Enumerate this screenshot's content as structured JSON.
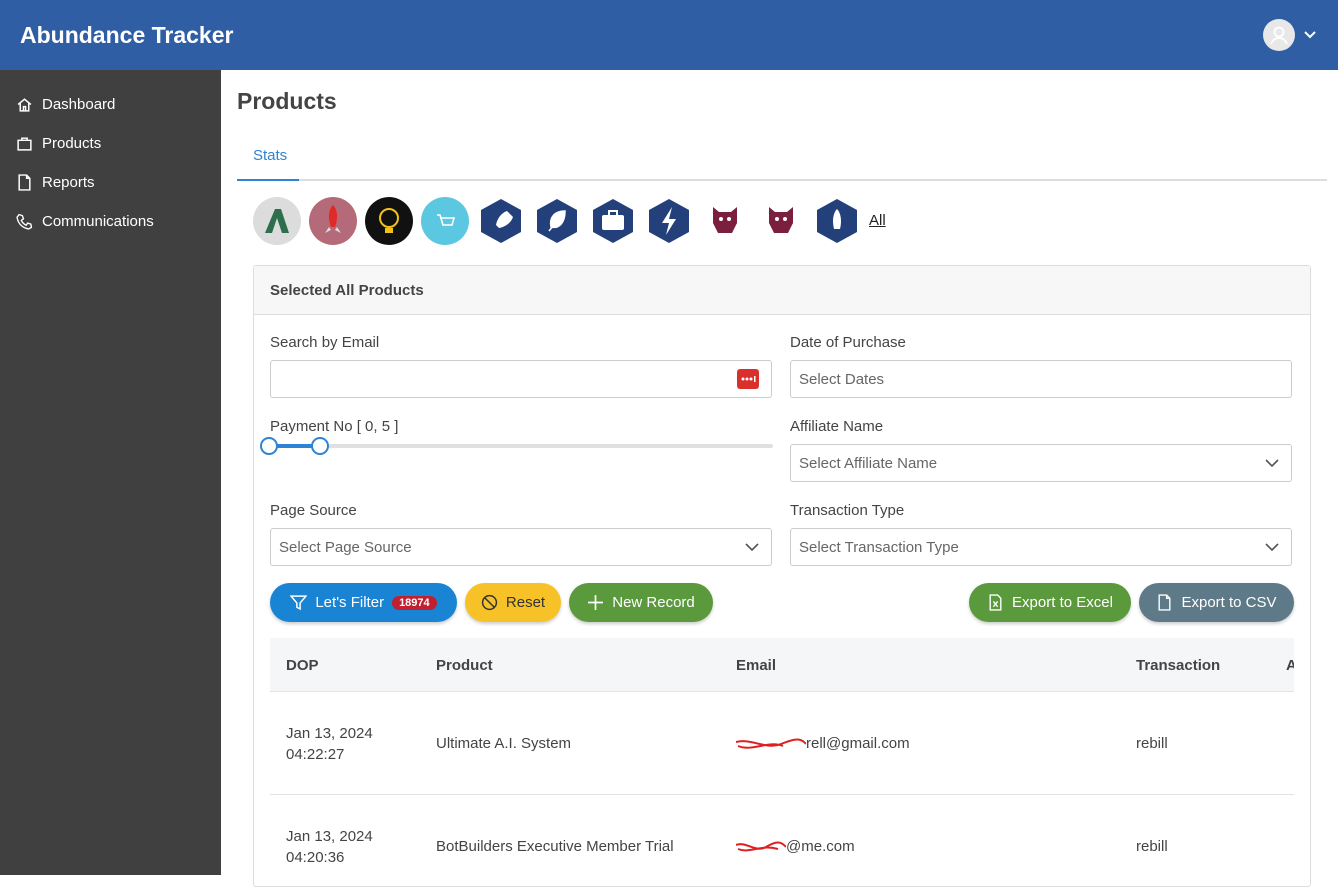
{
  "header": {
    "title": "Abundance Tracker"
  },
  "sidebar": {
    "items": [
      "Dashboard",
      "Products",
      "Reports",
      "Communications"
    ]
  },
  "page": {
    "title": "Products",
    "tab": "Stats",
    "all_link": "All"
  },
  "panel": {
    "title": "Selected All Products",
    "fields": [
      {
        "label": "Search by Email"
      },
      {
        "label": "Date of Purchase",
        "placeholder": "Select Dates"
      },
      {
        "label": "Payment No [ 0, 5 ]"
      },
      {
        "label": "Affiliate Name",
        "placeholder": "Select Affiliate Name"
      },
      {
        "label": "Page Source",
        "placeholder": "Select Page Source"
      },
      {
        "label": "Transaction Type",
        "placeholder": "Select Transaction Type"
      }
    ],
    "buttons": {
      "filter": "Let's Filter",
      "filter_count": 18974,
      "reset": "Reset",
      "new_record": "New Record",
      "export_excel": "Export to Excel",
      "export_csv": "Export to CSV"
    }
  },
  "table": {
    "columns": [
      "DOP",
      "Product",
      "Email",
      "Transaction",
      "A"
    ],
    "rows": [
      [
        "Jan 13, 2024",
        "04:22:27",
        "Ultimate A.I. System",
        "rell@gmail.com",
        "rebill"
      ],
      [
        "Jan 13, 2024",
        "04:20:36",
        "BotBuilders Executive Member Trial",
        "@me.com",
        "rebill"
      ]
    ]
  }
}
